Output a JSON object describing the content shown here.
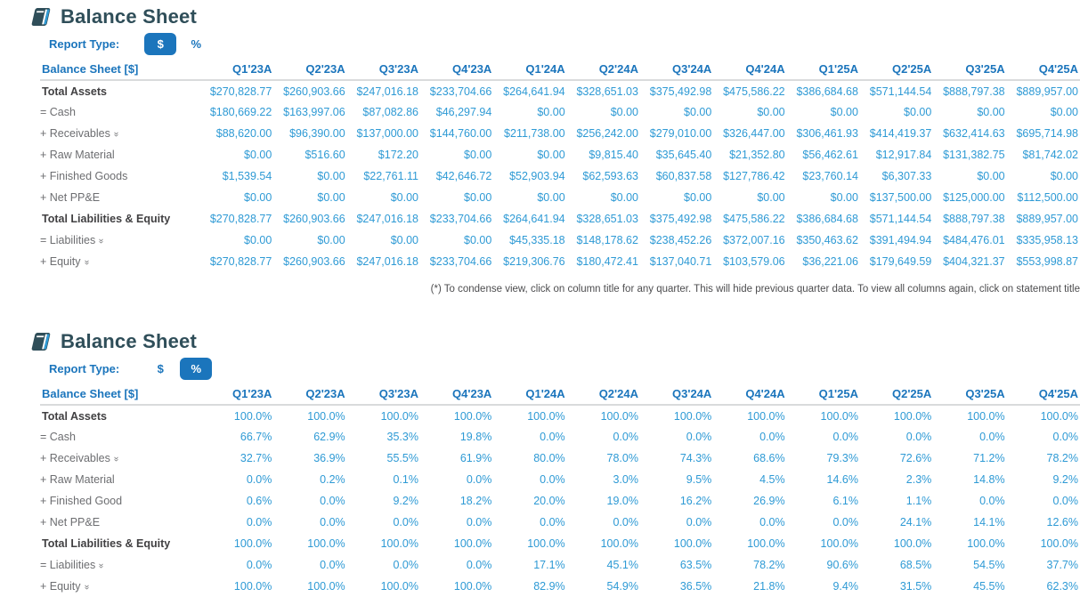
{
  "colors": {
    "accent_blue": "#1b75bc",
    "value_blue": "#2e9ad5",
    "title_dark": "#2f4e59",
    "label_gray": "#6d6e71"
  },
  "icons": {
    "statement_icon": "book-icon",
    "expand_icon": "chevron-double-down-icon",
    "expand_glyph": "»"
  },
  "sections": [
    {
      "title": "Balance Sheet",
      "report_type": {
        "label": "Report Type:",
        "dollar": "$",
        "percent": "%",
        "selected": "$"
      },
      "table": {
        "header_label": "Balance Sheet [$]",
        "columns": [
          "Q1'23A",
          "Q2'23A",
          "Q3'23A",
          "Q4'23A",
          "Q1'24A",
          "Q2'24A",
          "Q3'24A",
          "Q4'24A",
          "Q1'25A",
          "Q2'25A",
          "Q3'25A",
          "Q4'25A"
        ],
        "rows": [
          {
            "label": "Total Assets",
            "type": "total",
            "chevron": false,
            "values": [
              "$270,828.77",
              "$260,903.66",
              "$247,016.18",
              "$233,704.66",
              "$264,641.94",
              "$328,651.03",
              "$375,492.98",
              "$475,586.22",
              "$386,684.68",
              "$571,144.54",
              "$888,797.38",
              "$889,957.00"
            ]
          },
          {
            "label": "= Cash",
            "type": "sub",
            "chevron": false,
            "values": [
              "$180,669.22",
              "$163,997.06",
              "$87,082.86",
              "$46,297.94",
              "$0.00",
              "$0.00",
              "$0.00",
              "$0.00",
              "$0.00",
              "$0.00",
              "$0.00",
              "$0.00"
            ]
          },
          {
            "label": "+ Receivables",
            "type": "sub",
            "chevron": true,
            "values": [
              "$88,620.00",
              "$96,390.00",
              "$137,000.00",
              "$144,760.00",
              "$211,738.00",
              "$256,242.00",
              "$279,010.00",
              "$326,447.00",
              "$306,461.93",
              "$414,419.37",
              "$632,414.63",
              "$695,714.98"
            ]
          },
          {
            "label": "+ Raw Material",
            "type": "sub",
            "chevron": false,
            "values": [
              "$0.00",
              "$516.60",
              "$172.20",
              "$0.00",
              "$0.00",
              "$9,815.40",
              "$35,645.40",
              "$21,352.80",
              "$56,462.61",
              "$12,917.84",
              "$131,382.75",
              "$81,742.02"
            ]
          },
          {
            "label": "+ Finished Goods",
            "type": "sub",
            "chevron": false,
            "values": [
              "$1,539.54",
              "$0.00",
              "$22,761.11",
              "$42,646.72",
              "$52,903.94",
              "$62,593.63",
              "$60,837.58",
              "$127,786.42",
              "$23,760.14",
              "$6,307.33",
              "$0.00",
              "$0.00"
            ]
          },
          {
            "label": "+ Net PP&E",
            "type": "sub",
            "chevron": false,
            "values": [
              "$0.00",
              "$0.00",
              "$0.00",
              "$0.00",
              "$0.00",
              "$0.00",
              "$0.00",
              "$0.00",
              "$0.00",
              "$137,500.00",
              "$125,000.00",
              "$112,500.00"
            ]
          },
          {
            "label": "Total Liabilities & Equity",
            "type": "total",
            "chevron": false,
            "values": [
              "$270,828.77",
              "$260,903.66",
              "$247,016.18",
              "$233,704.66",
              "$264,641.94",
              "$328,651.03",
              "$375,492.98",
              "$475,586.22",
              "$386,684.68",
              "$571,144.54",
              "$888,797.38",
              "$889,957.00"
            ]
          },
          {
            "label": "= Liabilities",
            "type": "sub",
            "chevron": true,
            "values": [
              "$0.00",
              "$0.00",
              "$0.00",
              "$0.00",
              "$45,335.18",
              "$148,178.62",
              "$238,452.26",
              "$372,007.16",
              "$350,463.62",
              "$391,494.94",
              "$484,476.01",
              "$335,958.13"
            ]
          },
          {
            "label": "+ Equity",
            "type": "sub",
            "chevron": true,
            "values": [
              "$270,828.77",
              "$260,903.66",
              "$247,016.18",
              "$233,704.66",
              "$219,306.76",
              "$180,472.41",
              "$137,040.71",
              "$103,579.06",
              "$36,221.06",
              "$179,649.59",
              "$404,321.37",
              "$553,998.87"
            ]
          }
        ]
      },
      "footnote": "(*) To condense view, click on column title for any quarter. This will hide previous quarter data. To view all columns again, click on statement title"
    },
    {
      "title": "Balance Sheet",
      "report_type": {
        "label": "Report Type:",
        "dollar": "$",
        "percent": "%",
        "selected": "%"
      },
      "table": {
        "header_label": "Balance Sheet [$]",
        "columns": [
          "Q1'23A",
          "Q2'23A",
          "Q3'23A",
          "Q4'23A",
          "Q1'24A",
          "Q2'24A",
          "Q3'24A",
          "Q4'24A",
          "Q1'25A",
          "Q2'25A",
          "Q3'25A",
          "Q4'25A"
        ],
        "rows": [
          {
            "label": "Total Assets",
            "type": "total",
            "chevron": false,
            "values": [
              "100.0%",
              "100.0%",
              "100.0%",
              "100.0%",
              "100.0%",
              "100.0%",
              "100.0%",
              "100.0%",
              "100.0%",
              "100.0%",
              "100.0%",
              "100.0%"
            ]
          },
          {
            "label": "= Cash",
            "type": "sub",
            "chevron": false,
            "values": [
              "66.7%",
              "62.9%",
              "35.3%",
              "19.8%",
              "0.0%",
              "0.0%",
              "0.0%",
              "0.0%",
              "0.0%",
              "0.0%",
              "0.0%",
              "0.0%"
            ]
          },
          {
            "label": "+ Receivables",
            "type": "sub",
            "chevron": true,
            "values": [
              "32.7%",
              "36.9%",
              "55.5%",
              "61.9%",
              "80.0%",
              "78.0%",
              "74.3%",
              "68.6%",
              "79.3%",
              "72.6%",
              "71.2%",
              "78.2%"
            ]
          },
          {
            "label": "+ Raw Material",
            "type": "sub",
            "chevron": false,
            "values": [
              "0.0%",
              "0.2%",
              "0.1%",
              "0.0%",
              "0.0%",
              "3.0%",
              "9.5%",
              "4.5%",
              "14.6%",
              "2.3%",
              "14.8%",
              "9.2%"
            ]
          },
          {
            "label": "+ Finished Good",
            "type": "sub",
            "chevron": false,
            "values": [
              "0.6%",
              "0.0%",
              "9.2%",
              "18.2%",
              "20.0%",
              "19.0%",
              "16.2%",
              "26.9%",
              "6.1%",
              "1.1%",
              "0.0%",
              "0.0%"
            ]
          },
          {
            "label": "+ Net PP&E",
            "type": "sub",
            "chevron": false,
            "values": [
              "0.0%",
              "0.0%",
              "0.0%",
              "0.0%",
              "0.0%",
              "0.0%",
              "0.0%",
              "0.0%",
              "0.0%",
              "24.1%",
              "14.1%",
              "12.6%"
            ]
          },
          {
            "label": "Total Liabilities & Equity",
            "type": "total",
            "chevron": false,
            "values": [
              "100.0%",
              "100.0%",
              "100.0%",
              "100.0%",
              "100.0%",
              "100.0%",
              "100.0%",
              "100.0%",
              "100.0%",
              "100.0%",
              "100.0%",
              "100.0%"
            ]
          },
          {
            "label": "= Liabilities",
            "type": "sub",
            "chevron": true,
            "values": [
              "0.0%",
              "0.0%",
              "0.0%",
              "0.0%",
              "17.1%",
              "45.1%",
              "63.5%",
              "78.2%",
              "90.6%",
              "68.5%",
              "54.5%",
              "37.7%"
            ]
          },
          {
            "label": "+ Equity",
            "type": "sub",
            "chevron": true,
            "values": [
              "100.0%",
              "100.0%",
              "100.0%",
              "100.0%",
              "82.9%",
              "54.9%",
              "36.5%",
              "21.8%",
              "9.4%",
              "31.5%",
              "45.5%",
              "62.3%"
            ]
          }
        ]
      }
    }
  ]
}
